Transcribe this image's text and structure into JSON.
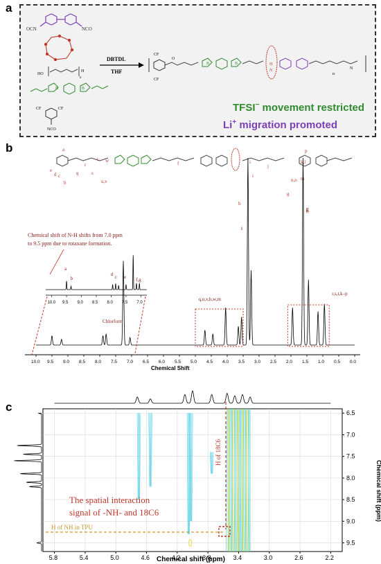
{
  "panels": {
    "a": "a",
    "b": "b",
    "c": "c"
  },
  "panel_a": {
    "reagent_iso": [
      "OCN",
      "NCO"
    ],
    "reagent_polyol": [
      "HO",
      "H",
      "n"
    ],
    "reaction_conditions": [
      "DBTDL",
      "THF"
    ],
    "boron_label": "B",
    "iso_end_label": "NCO",
    "cf3_label": "CF",
    "note_tfsi": "TFSI",
    "note_tfsi_rest": " movement restricted",
    "note_li": "Li",
    "note_li_rest": " migration promoted",
    "n_label": "n",
    "o_label": "O",
    "h_label": "H",
    "n_atom": "N"
  },
  "panel_b": {
    "peak_letters": [
      "a",
      "b",
      "c",
      "d",
      "e",
      "q",
      "r",
      "s",
      "t",
      "w",
      "u,v",
      "f",
      "h",
      "i",
      "j",
      "g",
      "k,l",
      "m",
      "n,o",
      "p",
      "g",
      "i"
    ],
    "annotation": "Chemical shift of N-H shifts from 7.0 ppm to 9.5 ppm due to rotaxane formation.",
    "inset_peaks": [
      "a",
      "b",
      "d",
      "c",
      "e",
      "f,g"
    ],
    "inset_ticks": [
      "10.0",
      "9.5",
      "9.0",
      "8.5",
      "8.0",
      "7.5",
      "7.0"
    ],
    "region_labels": [
      "q,u,v,h,w,m",
      "r,s,t,k–p"
    ],
    "solvent": "Chlorform",
    "x_ticks": [
      "10.0",
      "9.5",
      "9.0",
      "8.5",
      "8.0",
      "7.5",
      "7.0",
      "6.5",
      "6.0",
      "5.5",
      "5.0",
      "4.5",
      "4.0",
      "3.5",
      "3.0",
      "2.5",
      "2.0",
      "1.5",
      "1.0",
      "0.5",
      "0.0"
    ],
    "xlabel": "Chemical Shift"
  },
  "panel_c": {
    "x_ticks": [
      "5.8",
      "5.4",
      "5.0",
      "4.6",
      "4.2",
      "3.8",
      "3.4",
      "3.0",
      "2.6",
      "2.2"
    ],
    "y_ticks": [
      "6.5",
      "7.0",
      "7.5",
      "8.0",
      "8.5",
      "9.0",
      "9.5"
    ],
    "xlabel": "Chemical shift (ppm)",
    "ylabel": "Chemical shift (ppm)",
    "annotation_line1": "The spatial interaction",
    "annotation_line2": "signal of -NH- and 18C6",
    "h_of_18c6": "H of 18C6",
    "h_of_nh": "H of NH in TPU",
    "colors": {
      "contour_cyan": "#5fd3e6",
      "contour_yellow": "#e8d64a",
      "contour_green": "#7ccf6a",
      "annotation_red": "#c0392b",
      "guide_gold": "#c99a2e"
    }
  }
}
